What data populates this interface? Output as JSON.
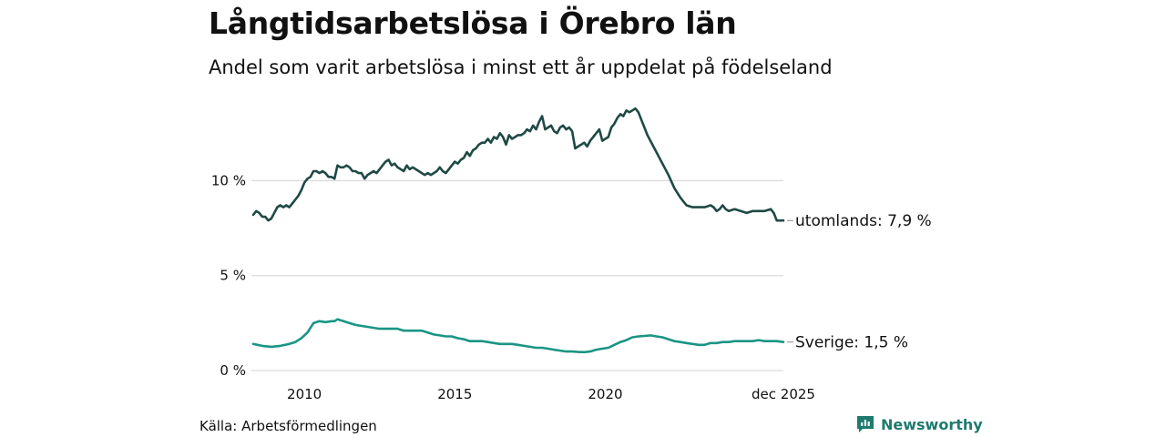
{
  "title": "Långtidsarbetslösa i Örebro län",
  "subtitle": "Andel som varit arbetslösa i minst ett år uppdelat på födelseland",
  "source": "Källa: Arbetsförmedlingen",
  "brand": "Newsworthy",
  "colors": {
    "utomlands": "#1f4a44",
    "sverige": "#1a9585",
    "grid": "#dcdcdc",
    "brand": "#1e7a6e"
  },
  "chart_data": {
    "type": "line",
    "ylim": [
      0,
      14
    ],
    "xlim": [
      2008.3,
      2025.92
    ],
    "yticks": [
      {
        "value": 0,
        "label": "0 %"
      },
      {
        "value": 5,
        "label": "5 %"
      },
      {
        "value": 10,
        "label": "10 %"
      }
    ],
    "xticks": [
      {
        "value": 2010,
        "label": "2010"
      },
      {
        "value": 2015,
        "label": "2015"
      },
      {
        "value": 2020,
        "label": "2020"
      },
      {
        "value": 2025.92,
        "label": "dec 2025"
      }
    ],
    "series": [
      {
        "name": "utomlands",
        "end_label": "utomlands: 7,9 %",
        "points": [
          [
            2008.3,
            8.2
          ],
          [
            2008.4,
            8.4
          ],
          [
            2008.5,
            8.3
          ],
          [
            2008.6,
            8.1
          ],
          [
            2008.7,
            8.1
          ],
          [
            2008.8,
            7.9
          ],
          [
            2008.9,
            8.0
          ],
          [
            2009.0,
            8.3
          ],
          [
            2009.1,
            8.6
          ],
          [
            2009.2,
            8.7
          ],
          [
            2009.3,
            8.6
          ],
          [
            2009.4,
            8.7
          ],
          [
            2009.5,
            8.6
          ],
          [
            2009.6,
            8.8
          ],
          [
            2009.7,
            9.0
          ],
          [
            2009.8,
            9.2
          ],
          [
            2009.9,
            9.5
          ],
          [
            2010.0,
            9.9
          ],
          [
            2010.1,
            10.1
          ],
          [
            2010.2,
            10.2
          ],
          [
            2010.3,
            10.5
          ],
          [
            2010.4,
            10.5
          ],
          [
            2010.5,
            10.4
          ],
          [
            2010.6,
            10.5
          ],
          [
            2010.7,
            10.4
          ],
          [
            2010.8,
            10.2
          ],
          [
            2010.9,
            10.2
          ],
          [
            2011.0,
            10.1
          ],
          [
            2011.1,
            10.8
          ],
          [
            2011.2,
            10.7
          ],
          [
            2011.3,
            10.7
          ],
          [
            2011.4,
            10.8
          ],
          [
            2011.5,
            10.7
          ],
          [
            2011.6,
            10.5
          ],
          [
            2011.7,
            10.5
          ],
          [
            2011.8,
            10.4
          ],
          [
            2011.9,
            10.4
          ],
          [
            2012.0,
            10.1
          ],
          [
            2012.1,
            10.3
          ],
          [
            2012.2,
            10.4
          ],
          [
            2012.3,
            10.5
          ],
          [
            2012.4,
            10.4
          ],
          [
            2012.5,
            10.6
          ],
          [
            2012.6,
            10.8
          ],
          [
            2012.7,
            11.0
          ],
          [
            2012.8,
            11.1
          ],
          [
            2012.9,
            10.8
          ],
          [
            2013.0,
            10.9
          ],
          [
            2013.1,
            10.7
          ],
          [
            2013.2,
            10.6
          ],
          [
            2013.3,
            10.5
          ],
          [
            2013.4,
            10.8
          ],
          [
            2013.5,
            10.6
          ],
          [
            2013.6,
            10.7
          ],
          [
            2013.7,
            10.6
          ],
          [
            2013.8,
            10.5
          ],
          [
            2013.9,
            10.4
          ],
          [
            2014.0,
            10.3
          ],
          [
            2014.1,
            10.4
          ],
          [
            2014.2,
            10.3
          ],
          [
            2014.3,
            10.4
          ],
          [
            2014.4,
            10.5
          ],
          [
            2014.5,
            10.7
          ],
          [
            2014.6,
            10.5
          ],
          [
            2014.7,
            10.4
          ],
          [
            2014.8,
            10.6
          ],
          [
            2014.9,
            10.8
          ],
          [
            2015.0,
            11.0
          ],
          [
            2015.1,
            10.9
          ],
          [
            2015.2,
            11.1
          ],
          [
            2015.3,
            11.2
          ],
          [
            2015.4,
            11.5
          ],
          [
            2015.5,
            11.3
          ],
          [
            2015.6,
            11.6
          ],
          [
            2015.7,
            11.7
          ],
          [
            2015.8,
            11.9
          ],
          [
            2015.9,
            12.0
          ],
          [
            2016.0,
            12.0
          ],
          [
            2016.1,
            12.2
          ],
          [
            2016.2,
            12.0
          ],
          [
            2016.3,
            12.3
          ],
          [
            2016.4,
            12.2
          ],
          [
            2016.5,
            12.5
          ],
          [
            2016.6,
            12.3
          ],
          [
            2016.7,
            11.9
          ],
          [
            2016.8,
            12.4
          ],
          [
            2016.9,
            12.2
          ],
          [
            2017.0,
            12.3
          ],
          [
            2017.1,
            12.4
          ],
          [
            2017.2,
            12.4
          ],
          [
            2017.3,
            12.5
          ],
          [
            2017.4,
            12.7
          ],
          [
            2017.5,
            12.6
          ],
          [
            2017.6,
            12.9
          ],
          [
            2017.7,
            12.7
          ],
          [
            2017.8,
            13.1
          ],
          [
            2017.9,
            13.4
          ],
          [
            2018.0,
            12.7
          ],
          [
            2018.1,
            12.8
          ],
          [
            2018.2,
            12.9
          ],
          [
            2018.3,
            12.6
          ],
          [
            2018.4,
            12.5
          ],
          [
            2018.5,
            12.8
          ],
          [
            2018.6,
            12.9
          ],
          [
            2018.7,
            12.7
          ],
          [
            2018.8,
            12.8
          ],
          [
            2018.9,
            12.6
          ],
          [
            2019.0,
            11.7
          ],
          [
            2019.1,
            11.8
          ],
          [
            2019.2,
            11.9
          ],
          [
            2019.3,
            12.0
          ],
          [
            2019.4,
            11.8
          ],
          [
            2019.5,
            12.1
          ],
          [
            2019.6,
            12.3
          ],
          [
            2019.7,
            12.5
          ],
          [
            2019.8,
            12.7
          ],
          [
            2019.9,
            12.1
          ],
          [
            2020.0,
            12.2
          ],
          [
            2020.1,
            12.3
          ],
          [
            2020.2,
            12.8
          ],
          [
            2020.3,
            13.0
          ],
          [
            2020.4,
            13.3
          ],
          [
            2020.5,
            13.5
          ],
          [
            2020.6,
            13.4
          ],
          [
            2020.7,
            13.7
          ],
          [
            2020.8,
            13.6
          ],
          [
            2020.9,
            13.7
          ],
          [
            2021.0,
            13.8
          ],
          [
            2021.1,
            13.6
          ],
          [
            2021.2,
            13.2
          ],
          [
            2021.3,
            12.8
          ],
          [
            2021.4,
            12.4
          ],
          [
            2021.5,
            12.1
          ],
          [
            2021.7,
            11.5
          ],
          [
            2021.9,
            10.9
          ],
          [
            2022.1,
            10.3
          ],
          [
            2022.3,
            9.6
          ],
          [
            2022.5,
            9.1
          ],
          [
            2022.7,
            8.7
          ],
          [
            2022.9,
            8.6
          ],
          [
            2023.1,
            8.6
          ],
          [
            2023.3,
            8.6
          ],
          [
            2023.5,
            8.7
          ],
          [
            2023.6,
            8.6
          ],
          [
            2023.7,
            8.4
          ],
          [
            2023.8,
            8.5
          ],
          [
            2023.9,
            8.7
          ],
          [
            2024.0,
            8.5
          ],
          [
            2024.1,
            8.4
          ],
          [
            2024.3,
            8.5
          ],
          [
            2024.5,
            8.4
          ],
          [
            2024.7,
            8.3
          ],
          [
            2024.9,
            8.4
          ],
          [
            2025.1,
            8.4
          ],
          [
            2025.3,
            8.4
          ],
          [
            2025.5,
            8.5
          ],
          [
            2025.6,
            8.3
          ],
          [
            2025.7,
            7.9
          ],
          [
            2025.92,
            7.9
          ]
        ]
      },
      {
        "name": "Sverige",
        "end_label": "Sverige: 1,5 %",
        "points": [
          [
            2008.3,
            1.4
          ],
          [
            2008.6,
            1.3
          ],
          [
            2008.9,
            1.25
          ],
          [
            2009.2,
            1.3
          ],
          [
            2009.5,
            1.4
          ],
          [
            2009.7,
            1.5
          ],
          [
            2009.9,
            1.7
          ],
          [
            2010.1,
            2.0
          ],
          [
            2010.3,
            2.5
          ],
          [
            2010.5,
            2.6
          ],
          [
            2010.7,
            2.55
          ],
          [
            2010.9,
            2.6
          ],
          [
            2011.0,
            2.6
          ],
          [
            2011.1,
            2.7
          ],
          [
            2011.3,
            2.6
          ],
          [
            2011.5,
            2.5
          ],
          [
            2011.7,
            2.4
          ],
          [
            2011.9,
            2.35
          ],
          [
            2012.1,
            2.3
          ],
          [
            2012.3,
            2.25
          ],
          [
            2012.5,
            2.2
          ],
          [
            2012.7,
            2.2
          ],
          [
            2012.9,
            2.2
          ],
          [
            2013.1,
            2.2
          ],
          [
            2013.3,
            2.1
          ],
          [
            2013.5,
            2.1
          ],
          [
            2013.7,
            2.1
          ],
          [
            2013.9,
            2.1
          ],
          [
            2014.1,
            2.0
          ],
          [
            2014.3,
            1.9
          ],
          [
            2014.5,
            1.85
          ],
          [
            2014.7,
            1.8
          ],
          [
            2014.9,
            1.8
          ],
          [
            2015.1,
            1.7
          ],
          [
            2015.3,
            1.65
          ],
          [
            2015.5,
            1.55
          ],
          [
            2015.7,
            1.55
          ],
          [
            2015.9,
            1.55
          ],
          [
            2016.1,
            1.5
          ],
          [
            2016.3,
            1.45
          ],
          [
            2016.5,
            1.4
          ],
          [
            2016.7,
            1.4
          ],
          [
            2016.9,
            1.4
          ],
          [
            2017.1,
            1.35
          ],
          [
            2017.3,
            1.3
          ],
          [
            2017.5,
            1.25
          ],
          [
            2017.7,
            1.2
          ],
          [
            2017.9,
            1.2
          ],
          [
            2018.1,
            1.15
          ],
          [
            2018.3,
            1.1
          ],
          [
            2018.5,
            1.05
          ],
          [
            2018.7,
            1.0
          ],
          [
            2018.9,
            1.0
          ],
          [
            2019.1,
            0.98
          ],
          [
            2019.3,
            0.97
          ],
          [
            2019.5,
            1.0
          ],
          [
            2019.7,
            1.1
          ],
          [
            2019.9,
            1.15
          ],
          [
            2020.1,
            1.2
          ],
          [
            2020.3,
            1.35
          ],
          [
            2020.5,
            1.5
          ],
          [
            2020.7,
            1.6
          ],
          [
            2020.9,
            1.75
          ],
          [
            2021.1,
            1.8
          ],
          [
            2021.3,
            1.82
          ],
          [
            2021.5,
            1.85
          ],
          [
            2021.7,
            1.8
          ],
          [
            2021.9,
            1.75
          ],
          [
            2022.1,
            1.65
          ],
          [
            2022.3,
            1.55
          ],
          [
            2022.5,
            1.5
          ],
          [
            2022.7,
            1.45
          ],
          [
            2022.9,
            1.4
          ],
          [
            2023.1,
            1.35
          ],
          [
            2023.3,
            1.35
          ],
          [
            2023.5,
            1.45
          ],
          [
            2023.7,
            1.45
          ],
          [
            2023.9,
            1.5
          ],
          [
            2024.1,
            1.5
          ],
          [
            2024.3,
            1.55
          ],
          [
            2024.5,
            1.55
          ],
          [
            2024.7,
            1.55
          ],
          [
            2024.9,
            1.55
          ],
          [
            2025.1,
            1.6
          ],
          [
            2025.3,
            1.55
          ],
          [
            2025.5,
            1.55
          ],
          [
            2025.7,
            1.55
          ],
          [
            2025.92,
            1.5
          ]
        ]
      }
    ]
  }
}
